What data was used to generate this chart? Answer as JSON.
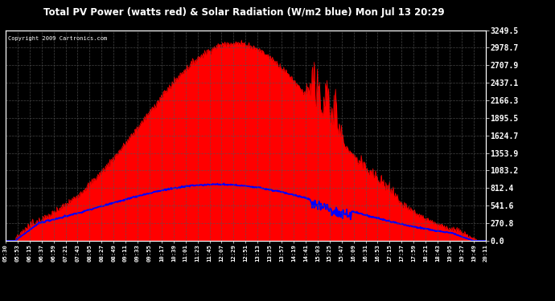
{
  "title": "Total PV Power (watts red) & Solar Radiation (W/m2 blue) Mon Jul 13 20:29",
  "copyright_text": "Copyright 2009 Cartronics.com",
  "background_color": "#000000",
  "plot_bg_color": "#000000",
  "grid_color": "#555555",
  "y_tick_values": [
    0.0,
    270.8,
    541.6,
    812.4,
    1083.2,
    1353.9,
    1624.7,
    1895.5,
    2166.3,
    2437.1,
    2707.9,
    2978.7,
    3249.5
  ],
  "y_max": 3249.5,
  "y_min": 0.0,
  "pv_color": "#ff0000",
  "solar_color": "#0000ff",
  "x_labels": [
    "05:30",
    "05:53",
    "06:15",
    "06:37",
    "06:59",
    "07:21",
    "07:43",
    "08:05",
    "08:27",
    "08:49",
    "09:11",
    "09:33",
    "09:55",
    "10:17",
    "10:39",
    "11:01",
    "11:23",
    "11:45",
    "12:07",
    "12:29",
    "12:51",
    "13:13",
    "13:35",
    "13:57",
    "14:19",
    "14:41",
    "15:03",
    "15:25",
    "15:47",
    "16:09",
    "16:31",
    "16:53",
    "17:15",
    "17:37",
    "17:59",
    "18:21",
    "18:43",
    "19:05",
    "19:27",
    "19:49",
    "20:11"
  ],
  "num_points": 900
}
